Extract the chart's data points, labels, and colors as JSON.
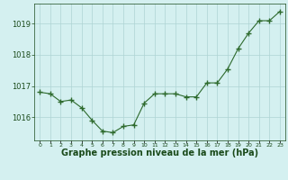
{
  "x": [
    0,
    1,
    2,
    3,
    4,
    5,
    6,
    7,
    8,
    9,
    10,
    11,
    12,
    13,
    14,
    15,
    16,
    17,
    18,
    19,
    20,
    21,
    22,
    23
  ],
  "y": [
    1016.8,
    1016.75,
    1016.5,
    1016.55,
    1016.3,
    1015.9,
    1015.55,
    1015.5,
    1015.7,
    1015.75,
    1016.45,
    1016.75,
    1016.75,
    1016.75,
    1016.65,
    1016.65,
    1017.1,
    1017.1,
    1017.55,
    1018.2,
    1018.7,
    1019.1,
    1019.1,
    1019.4
  ],
  "line_color": "#2d6a2d",
  "marker": "+",
  "marker_size": 4,
  "marker_linewidth": 1.0,
  "line_width": 0.8,
  "bg_color": "#d4f0f0",
  "grid_color": "#aed4d4",
  "axis_label_color": "#1a4a1a",
  "tick_label_color": "#1a4a1a",
  "xlabel": "Graphe pression niveau de la mer (hPa)",
  "ylim": [
    1015.25,
    1019.65
  ],
  "yticks": [
    1016,
    1017,
    1018,
    1019
  ],
  "xlim": [
    -0.5,
    23.5
  ],
  "ylabel_fontsize": 6,
  "xlabel_fontsize": 7,
  "xtick_fontsize": 4.5
}
